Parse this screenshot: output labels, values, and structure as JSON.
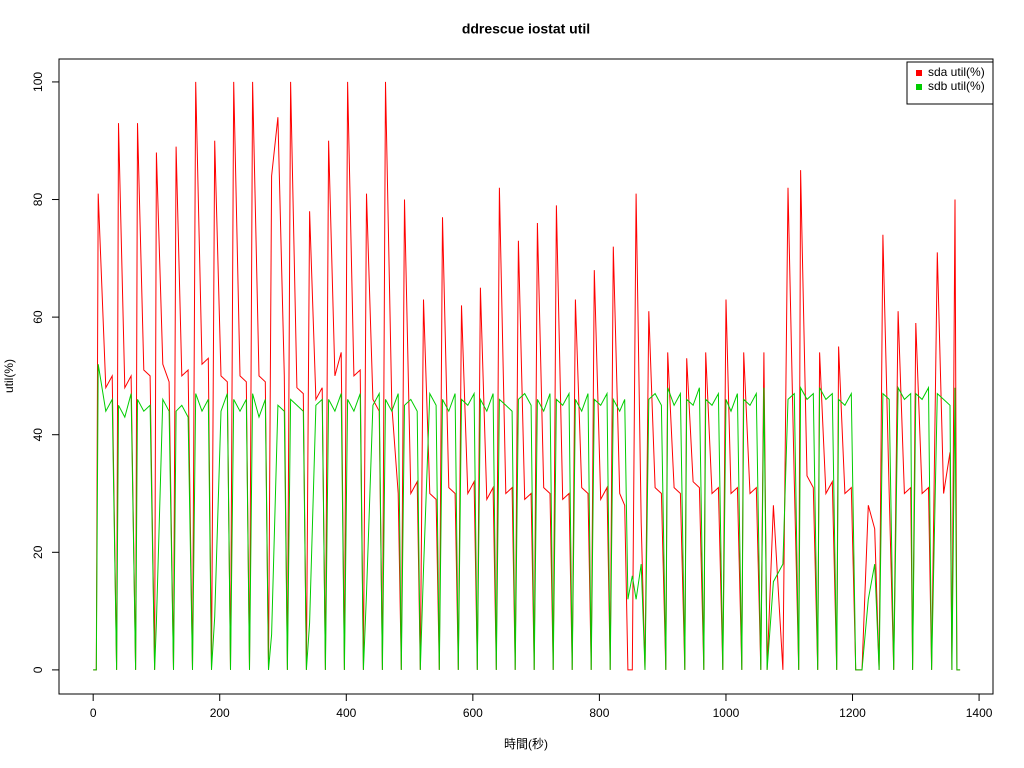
{
  "chart_data": {
    "type": "line",
    "title": "ddrescue iostat util",
    "xlabel": "時間(秒)",
    "ylabel": "util(%)",
    "x": [
      0,
      5,
      8,
      20,
      30,
      37,
      40,
      50,
      60,
      67,
      70,
      80,
      90,
      97,
      100,
      110,
      120,
      127,
      131,
      140,
      150,
      157,
      162,
      172,
      182,
      187,
      192,
      202,
      212,
      217,
      222,
      232,
      242,
      247,
      252,
      262,
      272,
      277,
      282,
      292,
      302,
      307,
      312,
      322,
      332,
      337,
      342,
      352,
      362,
      367,
      372,
      382,
      392,
      397,
      402,
      412,
      422,
      427,
      432,
      442,
      452,
      457,
      462,
      472,
      482,
      487,
      492,
      502,
      512,
      517,
      522,
      532,
      542,
      547,
      552,
      562,
      572,
      577,
      582,
      592,
      602,
      607,
      612,
      622,
      632,
      637,
      642,
      652,
      662,
      667,
      672,
      682,
      692,
      697,
      702,
      712,
      722,
      727,
      732,
      742,
      752,
      757,
      762,
      772,
      782,
      787,
      792,
      802,
      812,
      817,
      822,
      832,
      840,
      845,
      852,
      858,
      866,
      872,
      878,
      888,
      898,
      905,
      908,
      918,
      928,
      935,
      938,
      948,
      958,
      965,
      968,
      978,
      988,
      995,
      1000,
      1008,
      1018,
      1025,
      1028,
      1038,
      1048,
      1055,
      1060,
      1065,
      1075,
      1090,
      1098,
      1108,
      1115,
      1118,
      1128,
      1138,
      1145,
      1148,
      1158,
      1168,
      1175,
      1178,
      1188,
      1198,
      1205,
      1215,
      1225,
      1235,
      1242,
      1248,
      1258,
      1265,
      1272,
      1282,
      1292,
      1295,
      1300,
      1310,
      1320,
      1325,
      1334,
      1344,
      1354,
      1357,
      1362,
      1365,
      1370
    ],
    "series": [
      {
        "name": "sda util(%)",
        "color": "#ff0000",
        "values": [
          0,
          0,
          81,
          48,
          50,
          0,
          93,
          48,
          50,
          0,
          93,
          51,
          50,
          0,
          88,
          52,
          49,
          0,
          89,
          50,
          51,
          0,
          100,
          52,
          53,
          0,
          90,
          50,
          49,
          0,
          100,
          50,
          49,
          0,
          100,
          50,
          49,
          0,
          84,
          94,
          50,
          0,
          100,
          48,
          47,
          0,
          78,
          46,
          48,
          0,
          90,
          50,
          54,
          0,
          100,
          50,
          51,
          0,
          81,
          46,
          44,
          0,
          100,
          45,
          30,
          0,
          80,
          30,
          32,
          0,
          63,
          30,
          29,
          0,
          77,
          31,
          30,
          0,
          62,
          30,
          32,
          0,
          65,
          29,
          31,
          0,
          82,
          30,
          31,
          0,
          73,
          29,
          30,
          0,
          76,
          31,
          30,
          0,
          79,
          29,
          30,
          0,
          63,
          31,
          30,
          0,
          68,
          29,
          31,
          0,
          72,
          30,
          28,
          0,
          0,
          81,
          25,
          0,
          61,
          31,
          30,
          0,
          54,
          31,
          30,
          0,
          53,
          32,
          31,
          0,
          54,
          30,
          31,
          0,
          63,
          30,
          31,
          0,
          54,
          30,
          31,
          0,
          54,
          0,
          28,
          0,
          82,
          32,
          0,
          85,
          33,
          31,
          0,
          54,
          30,
          32,
          0,
          55,
          30,
          31,
          0,
          0,
          28,
          24,
          0,
          74,
          30,
          0,
          61,
          30,
          31,
          0,
          59,
          30,
          31,
          0,
          71,
          30,
          37,
          0,
          80,
          0,
          0
        ]
      },
      {
        "name": "sdb util(%)",
        "color": "#00cd00",
        "values": [
          0,
          0,
          52,
          44,
          46,
          0,
          45,
          43,
          47,
          0,
          46,
          44,
          45,
          0,
          8,
          46,
          44,
          0,
          44,
          45,
          43,
          0,
          47,
          44,
          46,
          0,
          9,
          44,
          47,
          0,
          46,
          44,
          46,
          0,
          47,
          43,
          46,
          0,
          6,
          45,
          44,
          0,
          46,
          45,
          44,
          0,
          8,
          45,
          46,
          0,
          46,
          44,
          47,
          0,
          46,
          44,
          47,
          0,
          13,
          45,
          47,
          0,
          46,
          44,
          47,
          0,
          45,
          46,
          44,
          0,
          17,
          47,
          45,
          0,
          46,
          44,
          47,
          0,
          46,
          45,
          47,
          0,
          46,
          44,
          47,
          0,
          46,
          45,
          44,
          0,
          46,
          47,
          45,
          0,
          46,
          44,
          47,
          0,
          46,
          45,
          47,
          0,
          46,
          44,
          47,
          0,
          46,
          45,
          47,
          0,
          46,
          44,
          46,
          12,
          16,
          12,
          18,
          0,
          46,
          47,
          45,
          0,
          48,
          45,
          47,
          0,
          46,
          45,
          48,
          0,
          46,
          45,
          47,
          0,
          46,
          44,
          47,
          0,
          46,
          45,
          47,
          0,
          48,
          0,
          15,
          18,
          46,
          47,
          0,
          48,
          46,
          47,
          0,
          48,
          46,
          47,
          0,
          46,
          45,
          47,
          0,
          0,
          12,
          18,
          0,
          47,
          46,
          0,
          48,
          46,
          47,
          0,
          47,
          46,
          48,
          0,
          47,
          46,
          45,
          0,
          48,
          0,
          0
        ]
      }
    ],
    "xlim": [
      -54,
      1422
    ],
    "ylim": [
      -4.1,
      103.9
    ],
    "xticks": [
      0,
      200,
      400,
      600,
      800,
      1000,
      1200,
      1400
    ],
    "yticks": [
      0,
      20,
      40,
      60,
      80,
      100
    ],
    "legend": "top-right"
  }
}
